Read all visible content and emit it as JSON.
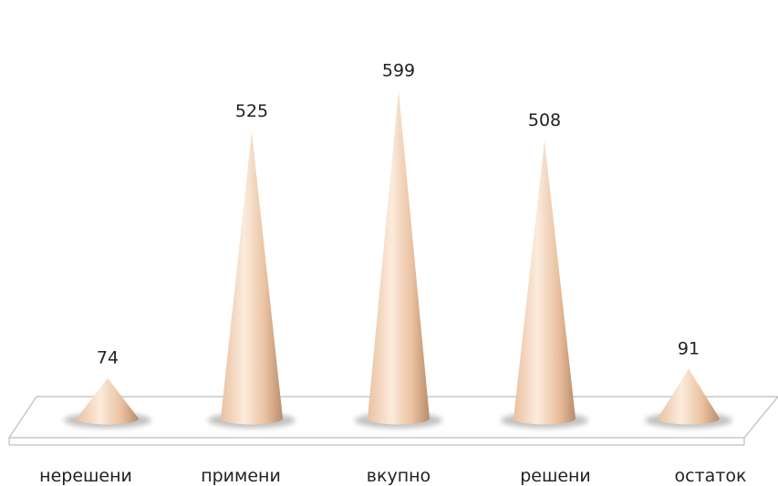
{
  "chart_data": {
    "type": "bar",
    "categories": [
      "нерешени",
      "примени",
      "вкупно",
      "решени",
      "остаток"
    ],
    "values": [
      74,
      525,
      599,
      508,
      91
    ],
    "ylim": [
      0,
      620
    ],
    "grid": false,
    "legend": "none",
    "colors": {
      "cone_light": "#fbebdc",
      "cone_mid": "#eac1a1",
      "cone_dark": "#b98c69",
      "floor": "#ffffff",
      "floor_edge": "#bdbdbd",
      "shadow": "#8f8f8f"
    }
  }
}
